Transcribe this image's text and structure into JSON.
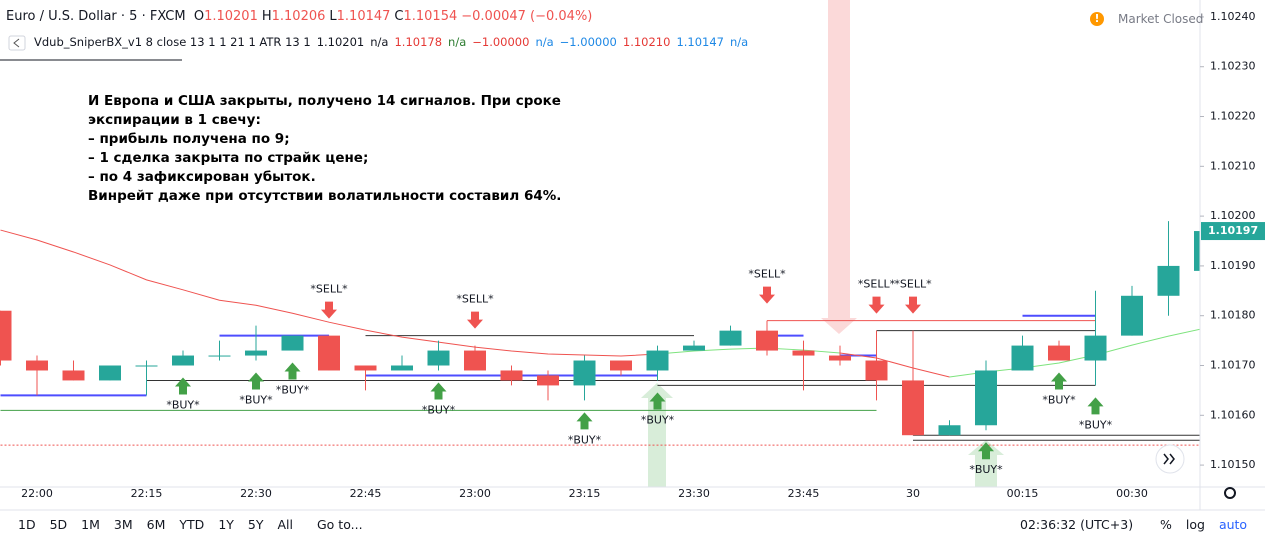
{
  "chart_data": {
    "type": "candlestick",
    "symbol": "Euro / U.S. Dollar · 5 · FXCM",
    "ohlc_labels": [
      "O",
      "H",
      "L",
      "C"
    ],
    "ohlc_values": [
      1.10201,
      1.10206,
      1.10147,
      1.10154
    ],
    "change": "−0.00047 (−0.04%)",
    "market_status": "Market Closed",
    "indicator": {
      "name": "Vdub_SniperBX_v1 8 close 13 1 1 21 1 ATR 13 1",
      "items": [
        {
          "text": "1.10201",
          "color": "#131722"
        },
        {
          "text": "n/a",
          "color": "#131722"
        },
        {
          "text": "1.10178",
          "color": "#e53935"
        },
        {
          "text": "n/a",
          "color": "#2e7d32"
        },
        {
          "text": "−1.00000",
          "color": "#e53935"
        },
        {
          "text": "n/a",
          "color": "#1e88e5"
        },
        {
          "text": "−1.00000",
          "color": "#1e88e5"
        },
        {
          "text": "1.10210",
          "color": "#e53935"
        },
        {
          "text": "1.10147",
          "color": "#1e88e5"
        },
        {
          "text": "n/a",
          "color": "#1e88e5"
        }
      ]
    },
    "annotation": [
      "И Европа и США закрыты, получено 14 сигналов. При сроке",
      "экспирации в 1 свечу:",
      "– прибыль получена по 9;",
      "– 1 сделка закрыта по страйк цене;",
      "– по 4 зафиксирован убыток.",
      "Винрейт даже при отсутствии волатильности составил 64%."
    ],
    "categories": [
      null,
      "22:00",
      null,
      null,
      "22:15",
      null,
      null,
      "22:30",
      null,
      null,
      "22:45",
      null,
      null,
      "23:00",
      null,
      null,
      "23:15",
      null,
      null,
      "23:30",
      null,
      null,
      "23:45",
      null,
      null,
      "30",
      null,
      null,
      "00:15",
      null,
      null,
      "00:30",
      null,
      null
    ],
    "open": [
      1.10181,
      1.10171,
      1.10169,
      1.10167,
      1.1017,
      1.1017,
      1.10172,
      1.10172,
      1.10173,
      1.10176,
      1.1017,
      1.10169,
      1.1017,
      1.10173,
      1.10169,
      1.10168,
      1.10166,
      1.10171,
      1.10169,
      1.10173,
      1.10174,
      1.10177,
      1.10173,
      1.10172,
      1.10171,
      1.10167,
      1.10156,
      1.10158,
      1.10169,
      1.10174,
      1.10171,
      1.10176,
      1.10184,
      1.10189
    ],
    "high": [
      1.10181,
      1.10172,
      1.10171,
      1.1017,
      1.10171,
      1.10173,
      1.10175,
      1.10178,
      1.10176,
      1.10176,
      1.1017,
      1.10172,
      1.10175,
      1.10174,
      1.1017,
      1.10169,
      1.10172,
      1.10171,
      1.10174,
      1.10175,
      1.10178,
      1.10179,
      1.10175,
      1.10174,
      1.10177,
      1.10177,
      1.10159,
      1.10171,
      1.10176,
      1.10175,
      1.10185,
      1.10186,
      1.10199,
      1.10197
    ],
    "low": [
      1.1017,
      1.10164,
      1.10167,
      1.10167,
      1.10164,
      1.1017,
      1.10171,
      1.10171,
      1.10173,
      1.10169,
      1.10165,
      1.10169,
      1.10169,
      1.10169,
      1.10166,
      1.10163,
      1.10163,
      1.10168,
      1.10167,
      1.10173,
      1.10174,
      1.10172,
      1.10165,
      1.1017,
      1.10163,
      1.10156,
      1.10156,
      1.10157,
      1.10169,
      1.10171,
      1.10166,
      1.10176,
      1.1018,
      1.10189
    ],
    "close": [
      1.10171,
      1.10169,
      1.10167,
      1.1017,
      1.1017,
      1.10172,
      1.10172,
      1.10173,
      1.10176,
      1.10169,
      1.10169,
      1.1017,
      1.10173,
      1.10169,
      1.10167,
      1.10166,
      1.10171,
      1.10169,
      1.10173,
      1.10174,
      1.10177,
      1.10173,
      1.10172,
      1.10171,
      1.10167,
      1.10156,
      1.10158,
      1.10169,
      1.10174,
      1.10171,
      1.10176,
      1.10184,
      1.1019,
      1.10197
    ],
    "up_color": "#26a69a",
    "down_color": "#ef5350",
    "moving_average": {
      "values": [
        1.101972,
        1.101952,
        1.101928,
        1.101902,
        1.101872,
        1.101852,
        1.101831,
        1.101821,
        1.101805,
        1.101787,
        1.101771,
        1.101757,
        1.101747,
        1.101737,
        1.101729,
        1.101723,
        1.101721,
        1.101719,
        1.101723,
        1.101729,
        1.101733,
        1.101735,
        1.101731,
        1.101725,
        1.101715,
        1.101695,
        1.101677,
        1.101687,
        1.101695,
        1.101705,
        1.101721,
        1.101741,
        1.101759,
        1.101775
      ],
      "colors": [
        "#ef5350",
        "#ef5350",
        "#ef5350",
        "#ef5350",
        "#ef5350",
        "#ef5350",
        "#ef5350",
        "#ef5350",
        "#ef5350",
        "#ef5350",
        "#ef5350",
        "#ef5350",
        "#ef5350",
        "#ef5350",
        "#ef5350",
        "#ef5350",
        "#ef5350",
        "#ef5350",
        "#7ee37e",
        "#7ee37e",
        "#7ee37e",
        "#7ee37e",
        "#7ee37e",
        "#ef5350",
        "#ef5350",
        "#ef5350",
        "#7ee37e",
        "#7ee37e",
        "#7ee37e",
        "#7ee37e",
        "#7ee37e",
        "#7ee37e",
        "#7ee37e",
        "#7ee37e"
      ]
    },
    "levels": [
      {
        "price": 1.10164,
        "from": 0,
        "to": 4,
        "color": "#4d4dff",
        "width": 2
      },
      {
        "price": 1.10161,
        "from": 0,
        "to": 24,
        "color": "#43a047",
        "width": 1
      },
      {
        "price": 1.10167,
        "from": 4,
        "to": 24,
        "color": "#333333",
        "width": 1
      },
      {
        "price": 1.10176,
        "from": 6,
        "to": 9,
        "color": "#4d4dff",
        "width": 2
      },
      {
        "price": 1.10176,
        "from": 10,
        "to": 19,
        "color": "#333333",
        "width": 1
      },
      {
        "price": 1.10168,
        "from": 10,
        "to": 18,
        "color": "#4d4dff",
        "width": 2
      },
      {
        "price": 1.10166,
        "from": 18,
        "to": 30,
        "color": "#333333",
        "width": 1
      },
      {
        "price": 1.10179,
        "from": 21,
        "to": 30,
        "color": "#ef5350",
        "width": 1
      },
      {
        "price": 1.10177,
        "from": 24,
        "to": 30,
        "color": "#333333",
        "width": 1
      },
      {
        "price": 1.10176,
        "from": 21,
        "to": 22,
        "color": "#4d4dff",
        "width": 2
      },
      {
        "price": 1.10172,
        "from": 23,
        "to": 24,
        "color": "#4d4dff",
        "width": 2
      },
      {
        "price": 1.1018,
        "from": 28,
        "to": 30,
        "color": "#4d4dff",
        "width": 2
      },
      {
        "price": 1.10156,
        "from": 25,
        "to": 33,
        "color": "#333333",
        "width": 1
      },
      {
        "price": 1.10155,
        "from": 25,
        "to": 33,
        "color": "#333333",
        "width": 1
      },
      {
        "price": 1.10154,
        "from": 0,
        "to": 33,
        "color": "#ef5350",
        "width": 1,
        "style": "dotted"
      }
    ],
    "sell_signals": {
      "text": "*SELL*",
      "color": "#ef5350",
      "candles": [
        9,
        13,
        21,
        24,
        25
      ]
    },
    "buy_signals": {
      "text": "*BUY*",
      "color": "#43a047",
      "candles": [
        5,
        7,
        8,
        12,
        16,
        18,
        27,
        29,
        30
      ]
    },
    "ylim": [
      1.101456,
      1.102434
    ],
    "yticks": [
      {
        "value": 1.1015,
        "label": "1.10150"
      },
      {
        "value": 1.1016,
        "label": "1.10160"
      },
      {
        "value": 1.1017,
        "label": "1.10170"
      },
      {
        "value": 1.1018,
        "label": "1.10180"
      },
      {
        "value": 1.1019,
        "label": "1.10190"
      },
      {
        "value": 1.102,
        "label": "1.10200"
      },
      {
        "value": 1.1021,
        "label": "1.10210"
      },
      {
        "value": 1.1022,
        "label": "1.10220"
      },
      {
        "value": 1.1023,
        "label": "1.10230"
      },
      {
        "value": 1.1024,
        "label": "1.10240"
      }
    ],
    "grid": false,
    "toolbar": {
      "ranges": [
        "1D",
        "5D",
        "1M",
        "3M",
        "6M",
        "YTD",
        "1Y",
        "5Y",
        "All"
      ],
      "goto": "Go to...",
      "clock": "02:36:32 (UTC+3)",
      "scale": [
        "%",
        "log",
        "auto"
      ]
    }
  }
}
